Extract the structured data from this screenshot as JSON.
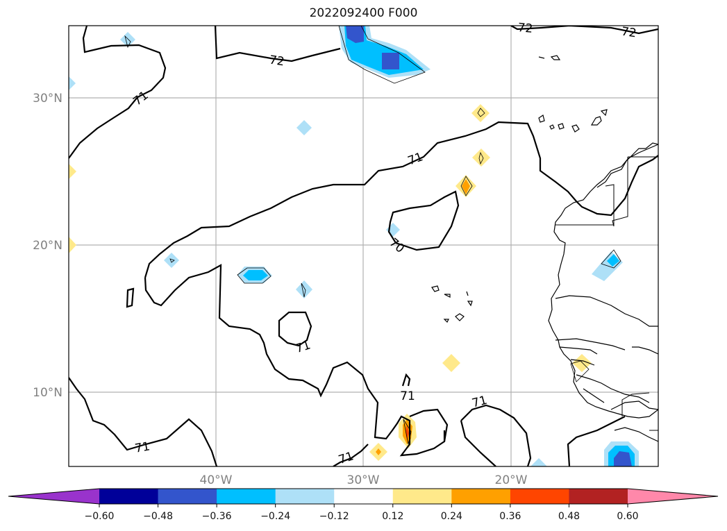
{
  "title": "2022092400 F000",
  "map": {
    "lat_labels": [
      "30°N",
      "20°N",
      "10°N"
    ],
    "lon_labels": [
      "40°W",
      "30°W",
      "20°W"
    ],
    "contour_labels": [
      "72",
      "72",
      "72",
      "71",
      "71",
      "70",
      "71",
      "71",
      "71",
      "71",
      "71"
    ]
  },
  "colorbar": {
    "ticks": [
      "−0.60",
      "−0.48",
      "−0.36",
      "−0.24",
      "−0.12",
      "0.12",
      "0.24",
      "0.36",
      "0.48",
      "0.60"
    ],
    "colors": [
      "#9933cc",
      "#000099",
      "#3355cc",
      "#00bfff",
      "#aee0f7",
      "#ffffff",
      "#ffe98a",
      "#ffa000",
      "#ff4500",
      "#b22222",
      "#ff88aa"
    ]
  },
  "colors": {
    "light_blue": "#aee0f7",
    "cyan": "#00bfff",
    "royal_blue": "#3355cc",
    "yellow": "#ffe98a",
    "orange": "#ffa000",
    "red": "#ff4500"
  }
}
